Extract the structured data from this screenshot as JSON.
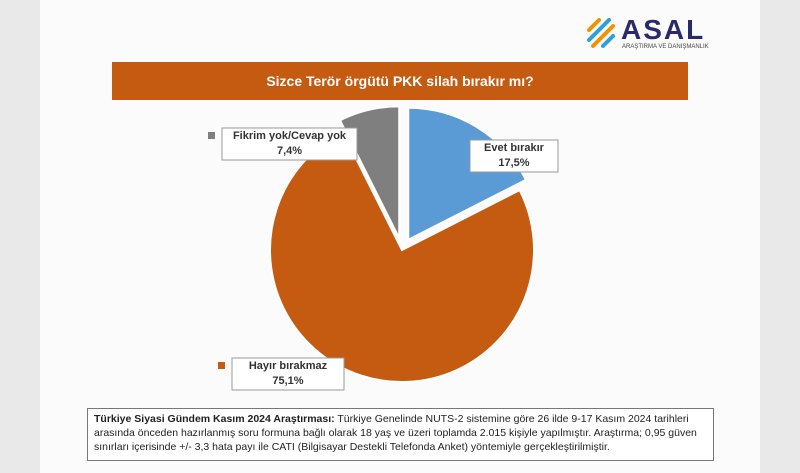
{
  "brand": {
    "name": "ASAL",
    "tagline": "ARAŞTIRMA VE DANIŞMANLIK"
  },
  "chart_data": {
    "type": "pie",
    "title": "Sizce Terör örgütü PKK silah bırakır mı?",
    "categories": [
      "Evet bırakır",
      "Hayır bırakmaz",
      "Fikrim yok/Cevap yok"
    ],
    "values": [
      17.5,
      75.1,
      7.4
    ],
    "value_labels": [
      "17,5%",
      "75,1%",
      "7,4%"
    ],
    "colors": [
      "#5b9bd5",
      "#c55a11",
      "#7f7f7f"
    ]
  },
  "footer": {
    "bold": "Türkiye Siyasi Gündem Kasım 2024 Araştırması:",
    "text": "Türkiye Genelinde NUTS-2 sistemine göre 26 ilde 9-17 Kasım 2024 tarihleri arasında önceden hazırlanmış soru formuna bağlı olarak 18 yaş ve üzeri toplamda 2.015 kişiyle yapılmıştır. Araştırma; 0,95 güven sınırları içerisinde +/- 3,3 hata payı ile CATI (Bilgisayar Destekli Telefonda Anket) yöntemiyle gerçekleştirilmiştir."
  }
}
